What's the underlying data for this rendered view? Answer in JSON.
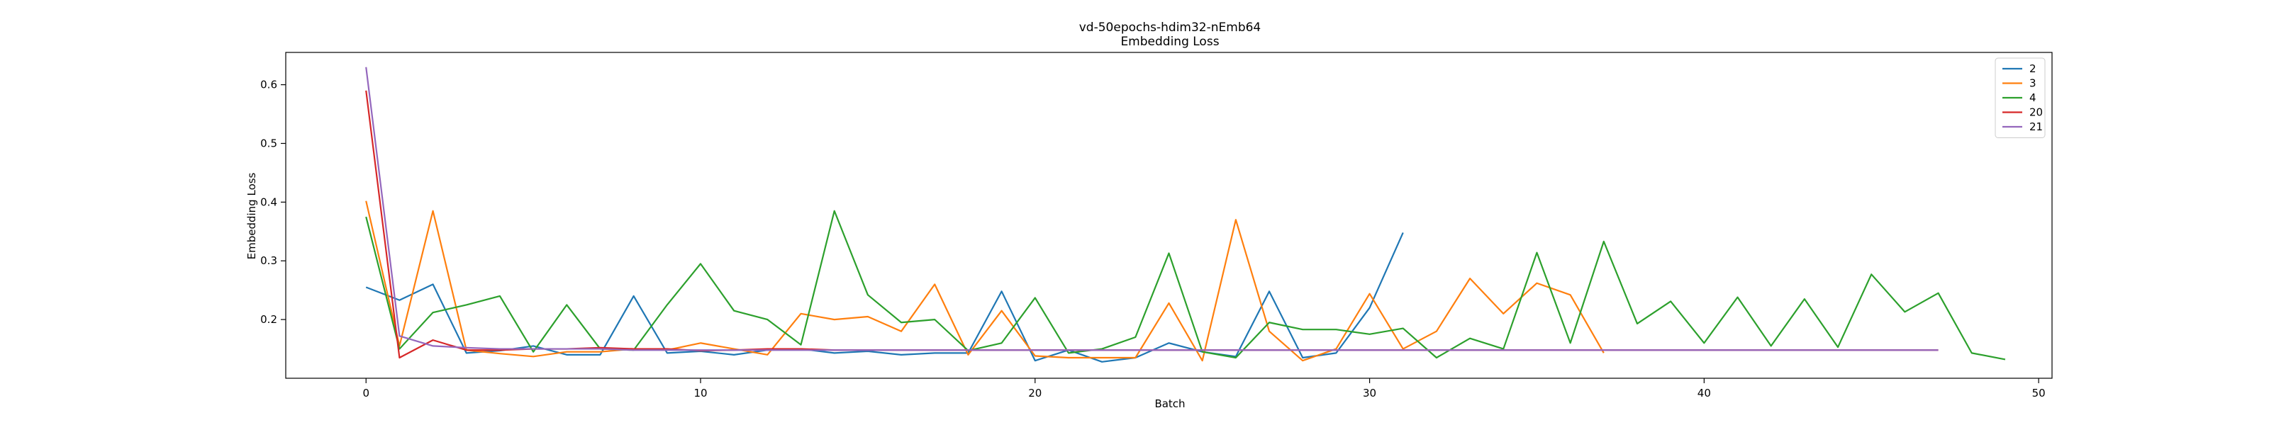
{
  "chart_data": {
    "type": "line",
    "title": "vd-50epochs-hdim32-nEmb64",
    "subtitle": "Embedding Loss",
    "xlabel": "Batch",
    "ylabel": "Embedding Loss",
    "xlim": [
      -2.4,
      50.4
    ],
    "ylim": [
      0.1,
      0.655
    ],
    "xticks": [
      0,
      10,
      20,
      30,
      40,
      50
    ],
    "yticks": [
      0.2,
      0.3,
      0.4,
      0.5,
      0.6
    ],
    "grid": false,
    "legend_position": "top-right",
    "series": [
      {
        "name": "2",
        "color": "#1f77b4",
        "values": [
          0.255,
          0.233,
          0.26,
          0.143,
          0.147,
          0.155,
          0.14,
          0.14,
          0.24,
          0.143,
          0.146,
          0.14,
          0.148,
          0.15,
          0.143,
          0.146,
          0.14,
          0.143,
          0.143,
          0.248,
          0.13,
          0.148,
          0.128,
          0.135,
          0.16,
          0.145,
          0.137,
          0.248,
          0.135,
          0.143,
          0.22,
          0.348
        ]
      },
      {
        "name": "3",
        "color": "#ff7f0e",
        "values": [
          0.402,
          0.155,
          0.385,
          0.148,
          0.142,
          0.137,
          0.145,
          0.145,
          0.15,
          0.148,
          0.16,
          0.15,
          0.14,
          0.21,
          0.2,
          0.205,
          0.18,
          0.26,
          0.14,
          0.215,
          0.138,
          0.135,
          0.135,
          0.135,
          0.228,
          0.13,
          0.37,
          0.18,
          0.13,
          0.15,
          0.244,
          0.15,
          0.18,
          0.27,
          0.21,
          0.262,
          0.242,
          0.143
        ]
      },
      {
        "name": "4",
        "color": "#2ca02c",
        "values": [
          0.375,
          0.15,
          0.212,
          0.225,
          0.24,
          0.145,
          0.225,
          0.15,
          0.148,
          0.225,
          0.295,
          0.215,
          0.2,
          0.157,
          0.385,
          0.242,
          0.195,
          0.2,
          0.147,
          0.16,
          0.237,
          0.143,
          0.15,
          0.17,
          0.313,
          0.145,
          0.135,
          0.195,
          0.183,
          0.183,
          0.175,
          0.185,
          0.135,
          0.168,
          0.15,
          0.314,
          0.16,
          0.333,
          0.193,
          0.231,
          0.16,
          0.238,
          0.155,
          0.235,
          0.153,
          0.277,
          0.213,
          0.245,
          0.143,
          0.132
        ]
      },
      {
        "name": "20",
        "color": "#d62728",
        "values": [
          0.59,
          0.135,
          0.165,
          0.148,
          0.148,
          0.15,
          0.15,
          0.152,
          0.15,
          0.15,
          0.147,
          0.148,
          0.15,
          0.15,
          0.148,
          0.148,
          0.148,
          0.148,
          0.148,
          0.148,
          0.148,
          0.148,
          0.148,
          0.148,
          0.148,
          0.148,
          0.148,
          0.148,
          0.148,
          0.148,
          0.148,
          0.148,
          0.148,
          0.148,
          0.148,
          0.148,
          0.148,
          0.148,
          0.148,
          0.148,
          0.148,
          0.148,
          0.148,
          0.148,
          0.148,
          0.148,
          0.148,
          0.148
        ]
      },
      {
        "name": "21",
        "color": "#9467bd",
        "values": [
          0.63,
          0.172,
          0.155,
          0.152,
          0.15,
          0.15,
          0.15,
          0.15,
          0.148,
          0.148,
          0.148,
          0.148,
          0.148,
          0.148,
          0.148,
          0.148,
          0.148,
          0.148,
          0.148,
          0.148,
          0.148,
          0.148,
          0.148,
          0.148,
          0.148,
          0.148,
          0.148,
          0.148,
          0.148,
          0.148,
          0.148,
          0.148,
          0.148,
          0.148,
          0.148,
          0.148,
          0.148,
          0.148,
          0.148,
          0.148,
          0.148,
          0.148,
          0.148,
          0.148,
          0.148,
          0.148,
          0.148,
          0.148
        ]
      }
    ]
  }
}
